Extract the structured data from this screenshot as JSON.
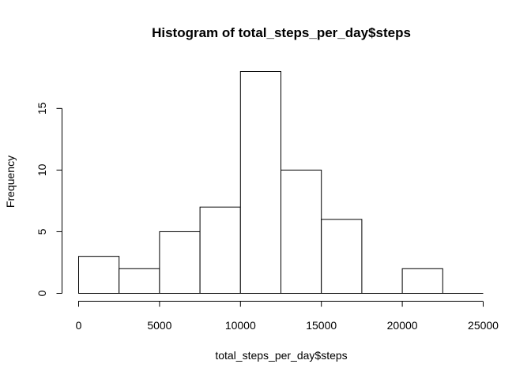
{
  "chart_data": {
    "type": "bar",
    "subtype": "histogram",
    "title": "Histogram of total_steps_per_day$steps",
    "xlabel": "total_steps_per_day$steps",
    "ylabel": "Frequency",
    "bins": [
      {
        "start": 0,
        "end": 2500,
        "count": 3
      },
      {
        "start": 2500,
        "end": 5000,
        "count": 2
      },
      {
        "start": 5000,
        "end": 7500,
        "count": 5
      },
      {
        "start": 7500,
        "end": 10000,
        "count": 7
      },
      {
        "start": 10000,
        "end": 12500,
        "count": 18
      },
      {
        "start": 12500,
        "end": 15000,
        "count": 10
      },
      {
        "start": 15000,
        "end": 17500,
        "count": 6
      },
      {
        "start": 17500,
        "end": 20000,
        "count": 0
      },
      {
        "start": 20000,
        "end": 22500,
        "count": 2
      },
      {
        "start": 22500,
        "end": 25000,
        "count": 0
      }
    ],
    "xlim": [
      0,
      25000
    ],
    "ylim": [
      0,
      18
    ],
    "xticks": [
      0,
      5000,
      10000,
      15000,
      20000,
      25000
    ],
    "yticks": [
      0,
      5,
      10,
      15
    ],
    "grid": false,
    "legend": "none"
  }
}
